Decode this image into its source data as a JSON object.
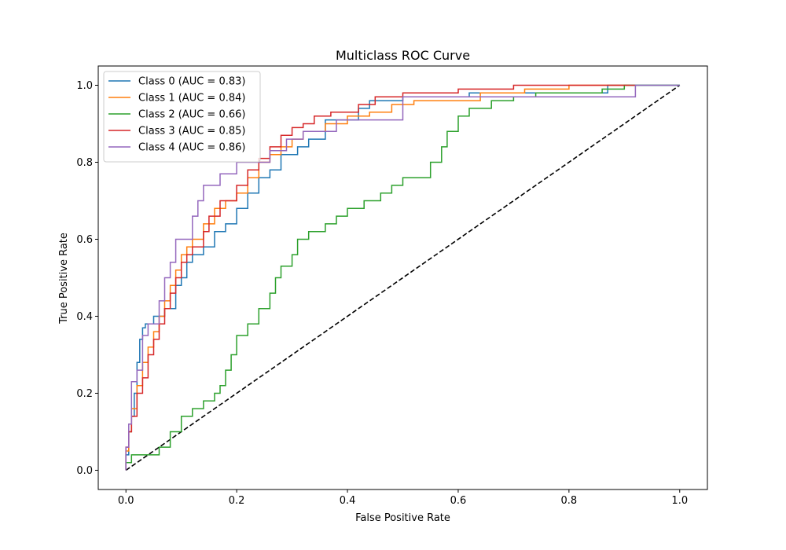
{
  "chart_data": {
    "type": "line",
    "title": "Multiclass ROC Curve",
    "xlabel": "False Positive Rate",
    "ylabel": "True Positive Rate",
    "xlim": [
      -0.05,
      1.05
    ],
    "ylim": [
      -0.05,
      1.05
    ],
    "xticks": [
      0.0,
      0.2,
      0.4,
      0.6,
      0.8,
      1.0
    ],
    "yticks": [
      0.0,
      0.2,
      0.4,
      0.6,
      0.8,
      1.0
    ],
    "xtick_labels": [
      "0.0",
      "0.2",
      "0.4",
      "0.6",
      "0.8",
      "1.0"
    ],
    "ytick_labels": [
      "0.0",
      "0.2",
      "0.4",
      "0.6",
      "0.8",
      "1.0"
    ],
    "grid": false,
    "legend_position": "top-left",
    "series": [
      {
        "name": "Class 0 (AUC = 0.83)",
        "color": "#1f77b4",
        "x": [
          0.0,
          0.0,
          0.005,
          0.005,
          0.01,
          0.01,
          0.015,
          0.015,
          0.02,
          0.02,
          0.025,
          0.025,
          0.03,
          0.03,
          0.035,
          0.035,
          0.04,
          0.04,
          0.05,
          0.05,
          0.07,
          0.07,
          0.09,
          0.09,
          0.1,
          0.1,
          0.11,
          0.11,
          0.12,
          0.12,
          0.14,
          0.14,
          0.16,
          0.16,
          0.18,
          0.18,
          0.2,
          0.2,
          0.22,
          0.22,
          0.24,
          0.24,
          0.26,
          0.26,
          0.28,
          0.28,
          0.31,
          0.31,
          0.33,
          0.33,
          0.36,
          0.36,
          0.42,
          0.42,
          0.44,
          0.44,
          0.5,
          0.5,
          0.62,
          0.62,
          0.87,
          0.87,
          1.0
        ],
        "y": [
          0.0,
          0.04,
          0.04,
          0.1,
          0.1,
          0.14,
          0.14,
          0.2,
          0.2,
          0.28,
          0.28,
          0.34,
          0.34,
          0.37,
          0.37,
          0.38,
          0.38,
          0.38,
          0.38,
          0.4,
          0.4,
          0.42,
          0.42,
          0.48,
          0.48,
          0.5,
          0.5,
          0.54,
          0.54,
          0.56,
          0.56,
          0.58,
          0.58,
          0.62,
          0.62,
          0.64,
          0.64,
          0.68,
          0.68,
          0.72,
          0.72,
          0.76,
          0.76,
          0.78,
          0.78,
          0.82,
          0.82,
          0.84,
          0.84,
          0.86,
          0.86,
          0.91,
          0.91,
          0.94,
          0.94,
          0.96,
          0.96,
          0.97,
          0.97,
          0.98,
          0.98,
          1.0,
          1.0
        ]
      },
      {
        "name": "Class 1 (AUC = 0.84)",
        "color": "#ff7f0e",
        "x": [
          0.0,
          0.0,
          0.005,
          0.005,
          0.01,
          0.01,
          0.02,
          0.02,
          0.03,
          0.03,
          0.04,
          0.04,
          0.05,
          0.05,
          0.06,
          0.06,
          0.07,
          0.07,
          0.08,
          0.08,
          0.09,
          0.09,
          0.1,
          0.1,
          0.11,
          0.11,
          0.12,
          0.12,
          0.14,
          0.14,
          0.16,
          0.16,
          0.18,
          0.18,
          0.2,
          0.2,
          0.22,
          0.22,
          0.24,
          0.24,
          0.26,
          0.26,
          0.28,
          0.28,
          0.3,
          0.3,
          0.32,
          0.32,
          0.36,
          0.36,
          0.4,
          0.4,
          0.44,
          0.44,
          0.48,
          0.48,
          0.52,
          0.52,
          0.64,
          0.64,
          0.72,
          0.72,
          0.8,
          0.8,
          0.91,
          0.91
        ],
        "y": [
          0.0,
          0.05,
          0.05,
          0.1,
          0.1,
          0.16,
          0.16,
          0.22,
          0.22,
          0.28,
          0.28,
          0.32,
          0.32,
          0.36,
          0.36,
          0.4,
          0.4,
          0.44,
          0.44,
          0.48,
          0.48,
          0.52,
          0.52,
          0.56,
          0.56,
          0.58,
          0.58,
          0.6,
          0.6,
          0.64,
          0.64,
          0.68,
          0.68,
          0.7,
          0.7,
          0.72,
          0.72,
          0.76,
          0.76,
          0.8,
          0.8,
          0.82,
          0.82,
          0.84,
          0.84,
          0.86,
          0.86,
          0.88,
          0.88,
          0.9,
          0.9,
          0.92,
          0.92,
          0.93,
          0.93,
          0.95,
          0.95,
          0.96,
          0.96,
          0.98,
          0.98,
          0.99,
          0.99,
          1.0,
          1.0,
          1.0
        ]
      },
      {
        "name": "Class 2 (AUC = 0.66)",
        "color": "#2ca02c",
        "x": [
          0.0,
          0.0,
          0.01,
          0.01,
          0.06,
          0.06,
          0.08,
          0.08,
          0.1,
          0.1,
          0.12,
          0.12,
          0.14,
          0.14,
          0.16,
          0.16,
          0.17,
          0.17,
          0.18,
          0.18,
          0.19,
          0.19,
          0.2,
          0.2,
          0.22,
          0.22,
          0.24,
          0.24,
          0.26,
          0.26,
          0.27,
          0.27,
          0.28,
          0.28,
          0.3,
          0.3,
          0.31,
          0.31,
          0.33,
          0.33,
          0.36,
          0.36,
          0.38,
          0.38,
          0.4,
          0.4,
          0.43,
          0.43,
          0.46,
          0.46,
          0.48,
          0.48,
          0.5,
          0.5,
          0.55,
          0.55,
          0.57,
          0.57,
          0.58,
          0.58,
          0.6,
          0.6,
          0.62,
          0.62,
          0.66,
          0.66,
          0.7,
          0.7,
          0.74,
          0.74,
          0.86,
          0.86,
          0.9,
          0.9,
          1.0
        ],
        "y": [
          0.0,
          0.02,
          0.02,
          0.04,
          0.04,
          0.06,
          0.06,
          0.1,
          0.1,
          0.14,
          0.14,
          0.16,
          0.16,
          0.18,
          0.18,
          0.2,
          0.2,
          0.22,
          0.22,
          0.26,
          0.26,
          0.3,
          0.3,
          0.35,
          0.35,
          0.38,
          0.38,
          0.42,
          0.42,
          0.46,
          0.46,
          0.5,
          0.5,
          0.53,
          0.53,
          0.56,
          0.56,
          0.6,
          0.6,
          0.62,
          0.62,
          0.64,
          0.64,
          0.66,
          0.66,
          0.68,
          0.68,
          0.7,
          0.7,
          0.72,
          0.72,
          0.74,
          0.74,
          0.76,
          0.76,
          0.8,
          0.8,
          0.84,
          0.84,
          0.88,
          0.88,
          0.92,
          0.92,
          0.94,
          0.94,
          0.96,
          0.96,
          0.97,
          0.97,
          0.98,
          0.98,
          0.99,
          0.99,
          1.0,
          1.0
        ]
      },
      {
        "name": "Class 3 (AUC = 0.85)",
        "color": "#d62728",
        "x": [
          0.0,
          0.0,
          0.005,
          0.005,
          0.01,
          0.01,
          0.02,
          0.02,
          0.03,
          0.03,
          0.04,
          0.04,
          0.05,
          0.05,
          0.06,
          0.06,
          0.07,
          0.07,
          0.08,
          0.08,
          0.09,
          0.09,
          0.1,
          0.1,
          0.11,
          0.11,
          0.12,
          0.12,
          0.14,
          0.14,
          0.15,
          0.15,
          0.17,
          0.17,
          0.2,
          0.2,
          0.22,
          0.22,
          0.24,
          0.24,
          0.26,
          0.26,
          0.28,
          0.28,
          0.3,
          0.3,
          0.32,
          0.32,
          0.34,
          0.34,
          0.37,
          0.37,
          0.42,
          0.42,
          0.45,
          0.45,
          0.5,
          0.5,
          0.6,
          0.6,
          0.7,
          0.7,
          0.92,
          0.92
        ],
        "y": [
          0.0,
          0.06,
          0.06,
          0.1,
          0.1,
          0.14,
          0.14,
          0.2,
          0.2,
          0.24,
          0.24,
          0.3,
          0.3,
          0.34,
          0.34,
          0.38,
          0.38,
          0.42,
          0.42,
          0.46,
          0.46,
          0.5,
          0.5,
          0.54,
          0.54,
          0.56,
          0.56,
          0.58,
          0.58,
          0.62,
          0.62,
          0.66,
          0.66,
          0.7,
          0.7,
          0.74,
          0.74,
          0.78,
          0.78,
          0.81,
          0.81,
          0.84,
          0.84,
          0.87,
          0.87,
          0.89,
          0.89,
          0.9,
          0.9,
          0.92,
          0.92,
          0.93,
          0.93,
          0.95,
          0.95,
          0.97,
          0.97,
          0.98,
          0.98,
          0.99,
          0.99,
          1.0,
          1.0,
          1.0
        ]
      },
      {
        "name": "Class 4 (AUC = 0.86)",
        "color": "#9467bd",
        "x": [
          0.0,
          0.0,
          0.005,
          0.005,
          0.01,
          0.01,
          0.02,
          0.02,
          0.03,
          0.03,
          0.04,
          0.04,
          0.06,
          0.06,
          0.07,
          0.07,
          0.08,
          0.08,
          0.09,
          0.09,
          0.12,
          0.12,
          0.13,
          0.13,
          0.14,
          0.14,
          0.17,
          0.17,
          0.2,
          0.2,
          0.26,
          0.26,
          0.29,
          0.29,
          0.32,
          0.32,
          0.38,
          0.38,
          0.5,
          0.5,
          0.92,
          0.92,
          1.0
        ],
        "y": [
          0.0,
          0.06,
          0.06,
          0.12,
          0.12,
          0.23,
          0.23,
          0.26,
          0.26,
          0.35,
          0.35,
          0.38,
          0.38,
          0.44,
          0.44,
          0.5,
          0.5,
          0.54,
          0.54,
          0.6,
          0.6,
          0.66,
          0.66,
          0.7,
          0.7,
          0.74,
          0.74,
          0.77,
          0.77,
          0.8,
          0.8,
          0.83,
          0.83,
          0.86,
          0.86,
          0.88,
          0.88,
          0.91,
          0.91,
          0.97,
          0.97,
          1.0,
          1.0
        ]
      }
    ],
    "reference_line": {
      "x": [
        0.0,
        1.0
      ],
      "y": [
        0.0,
        1.0
      ],
      "color": "#000000",
      "dash": "dashed"
    }
  }
}
